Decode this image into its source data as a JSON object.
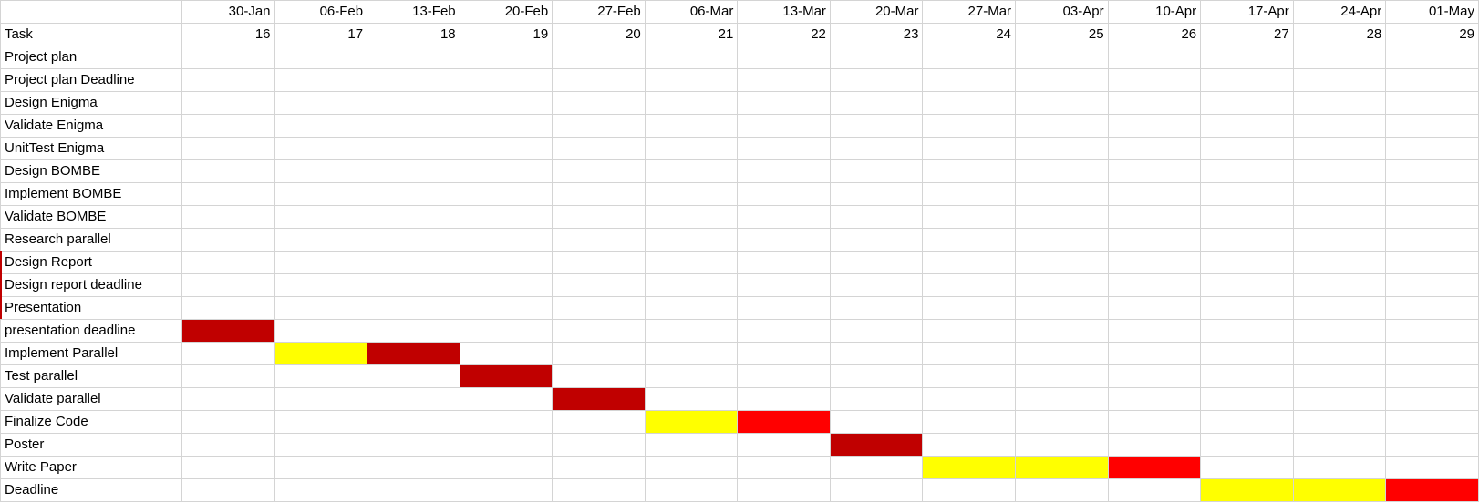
{
  "sheet": {
    "task_header": "Task",
    "dates": [
      "30-Jan",
      "06-Feb",
      "13-Feb",
      "20-Feb",
      "27-Feb",
      "06-Mar",
      "13-Mar",
      "20-Mar",
      "27-Mar",
      "03-Apr",
      "10-Apr",
      "17-Apr",
      "24-Apr",
      "01-May"
    ],
    "weeks": [
      "16",
      "17",
      "18",
      "19",
      "20",
      "21",
      "22",
      "23",
      "24",
      "25",
      "26",
      "27",
      "28",
      "29"
    ],
    "colors": {
      "dark": "#c00000",
      "red": "#ff0000",
      "yellow": "#ffff00",
      "grid": "#d4d4d4"
    },
    "tasks": [
      {
        "name": "Project plan",
        "cells": []
      },
      {
        "name": "Project plan Deadline",
        "cells": []
      },
      {
        "name": "Design Enigma",
        "cells": []
      },
      {
        "name": "Validate Enigma",
        "cells": []
      },
      {
        "name": "UnitTest Enigma",
        "cells": []
      },
      {
        "name": "Design BOMBE",
        "cells": []
      },
      {
        "name": "Implement BOMBE",
        "cells": []
      },
      {
        "name": "Validate BOMBE",
        "cells": []
      },
      {
        "name": "Research parallel",
        "cells": []
      },
      {
        "name": "Design Report",
        "cells": []
      },
      {
        "name": "Design report deadline",
        "cells": []
      },
      {
        "name": "Presentation",
        "cells": []
      },
      {
        "name": "presentation deadline",
        "cells": [
          {
            "col": 0,
            "color": "dark"
          }
        ]
      },
      {
        "name": "Implement Parallel",
        "cells": [
          {
            "col": 1,
            "color": "yellow"
          },
          {
            "col": 2,
            "color": "dark"
          }
        ]
      },
      {
        "name": "Test parallel",
        "cells": [
          {
            "col": 3,
            "color": "dark"
          }
        ]
      },
      {
        "name": "Validate parallel",
        "cells": [
          {
            "col": 4,
            "color": "dark"
          }
        ]
      },
      {
        "name": "Finalize Code",
        "cells": [
          {
            "col": 5,
            "color": "yellow"
          },
          {
            "col": 6,
            "color": "red"
          }
        ]
      },
      {
        "name": "Poster",
        "cells": [
          {
            "col": 7,
            "color": "dark"
          }
        ]
      },
      {
        "name": "Write Paper",
        "cells": [
          {
            "col": 8,
            "color": "yellow"
          },
          {
            "col": 9,
            "color": "yellow"
          },
          {
            "col": 10,
            "color": "red"
          }
        ]
      },
      {
        "name": "Deadline",
        "cells": [
          {
            "col": 11,
            "color": "yellow"
          },
          {
            "col": 12,
            "color": "yellow"
          },
          {
            "col": 13,
            "color": "red"
          }
        ]
      }
    ]
  }
}
